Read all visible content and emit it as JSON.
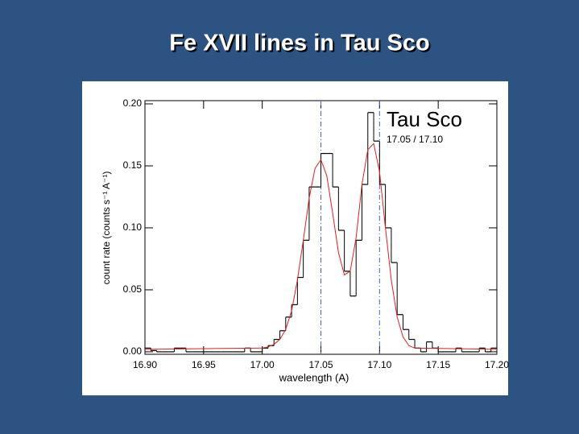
{
  "chart_data": {
    "type": "histogram",
    "title": "Fe XVII lines in Tau Sco",
    "xlabel": "wavelength (A)",
    "ylabel": "count rate (counts s⁻¹ A⁻¹)",
    "annotations": [
      "Tau Sco",
      "17.05 / 17.10"
    ],
    "xlim": [
      16.9,
      17.2
    ],
    "ylim": [
      -0.002,
      0.2026
    ],
    "xticks": [
      {
        "value": 16.9,
        "label": "16.90"
      },
      16.95,
      {
        "value": 17.0,
        "label": "17.00"
      },
      17.05,
      {
        "value": 17.1,
        "label": "17.10"
      },
      17.15,
      {
        "value": 17.2,
        "label": "17.20"
      }
    ],
    "yticks": [
      {
        "value": 0,
        "label": "0.00"
      },
      {
        "value": 0.05,
        "label": "0.05"
      },
      {
        "value": 0.1,
        "label": "0.10"
      },
      {
        "value": 0.15,
        "label": "0.15"
      },
      {
        "value": 0.2,
        "label": "0.20"
      }
    ],
    "reference_lines": [
      17.05,
      17.1
    ],
    "reference_color": "#4a5fd0",
    "histogram": {
      "color": "#000000",
      "bins": [
        16.9,
        16.905,
        16.91,
        16.915,
        16.92,
        16.925,
        16.93,
        16.935,
        16.94,
        16.945,
        16.95,
        16.955,
        16.96,
        16.965,
        16.97,
        16.975,
        16.98,
        16.985,
        16.99,
        16.995,
        17.0,
        17.005,
        17.01,
        17.015,
        17.02,
        17.025,
        17.03,
        17.035,
        17.04,
        17.045,
        17.05,
        17.055,
        17.06,
        17.065,
        17.07,
        17.075,
        17.08,
        17.085,
        17.09,
        17.095,
        17.1,
        17.105,
        17.11,
        17.115,
        17.12,
        17.125,
        17.13,
        17.135,
        17.14,
        17.145,
        17.15,
        17.155,
        17.16,
        17.165,
        17.17,
        17.175,
        17.18,
        17.185,
        17.19,
        17.195,
        17.2
      ],
      "values": [
        0.003,
        0.001,
        0.0,
        0.0,
        0.0,
        0.003,
        0.003,
        0.0,
        0.0,
        0.0,
        0.0,
        0.0,
        0.0,
        0.0,
        0.0,
        0.0,
        0.0,
        0.003,
        0.0,
        0.0,
        0.003,
        0.005,
        0.01,
        0.017,
        0.028,
        0.038,
        0.06,
        0.09,
        0.133,
        0.133,
        0.16,
        0.16,
        0.133,
        0.098,
        0.065,
        0.045,
        0.09,
        0.135,
        0.193,
        0.17,
        0.135,
        0.1,
        0.072,
        0.03,
        0.018,
        0.01,
        0.003,
        0.0,
        0.008,
        0.003,
        0.0,
        0.0,
        0.0,
        0.003,
        0.0,
        0.0,
        0.0,
        0.003,
        0.0,
        0.003
      ]
    },
    "model": {
      "color": "#e02020",
      "x": [
        16.9,
        17.0,
        17.005,
        17.01,
        17.015,
        17.02,
        17.025,
        17.03,
        17.035,
        17.04,
        17.045,
        17.05,
        17.055,
        17.06,
        17.065,
        17.07,
        17.075,
        17.08,
        17.085,
        17.09,
        17.095,
        17.1,
        17.105,
        17.11,
        17.115,
        17.12,
        17.125,
        17.13,
        17.2
      ],
      "values": [
        0.002,
        0.003,
        0.004,
        0.006,
        0.01,
        0.018,
        0.033,
        0.058,
        0.09,
        0.124,
        0.148,
        0.155,
        0.142,
        0.112,
        0.08,
        0.062,
        0.065,
        0.092,
        0.135,
        0.163,
        0.168,
        0.145,
        0.1,
        0.058,
        0.028,
        0.012,
        0.005,
        0.003,
        0.002
      ]
    }
  }
}
